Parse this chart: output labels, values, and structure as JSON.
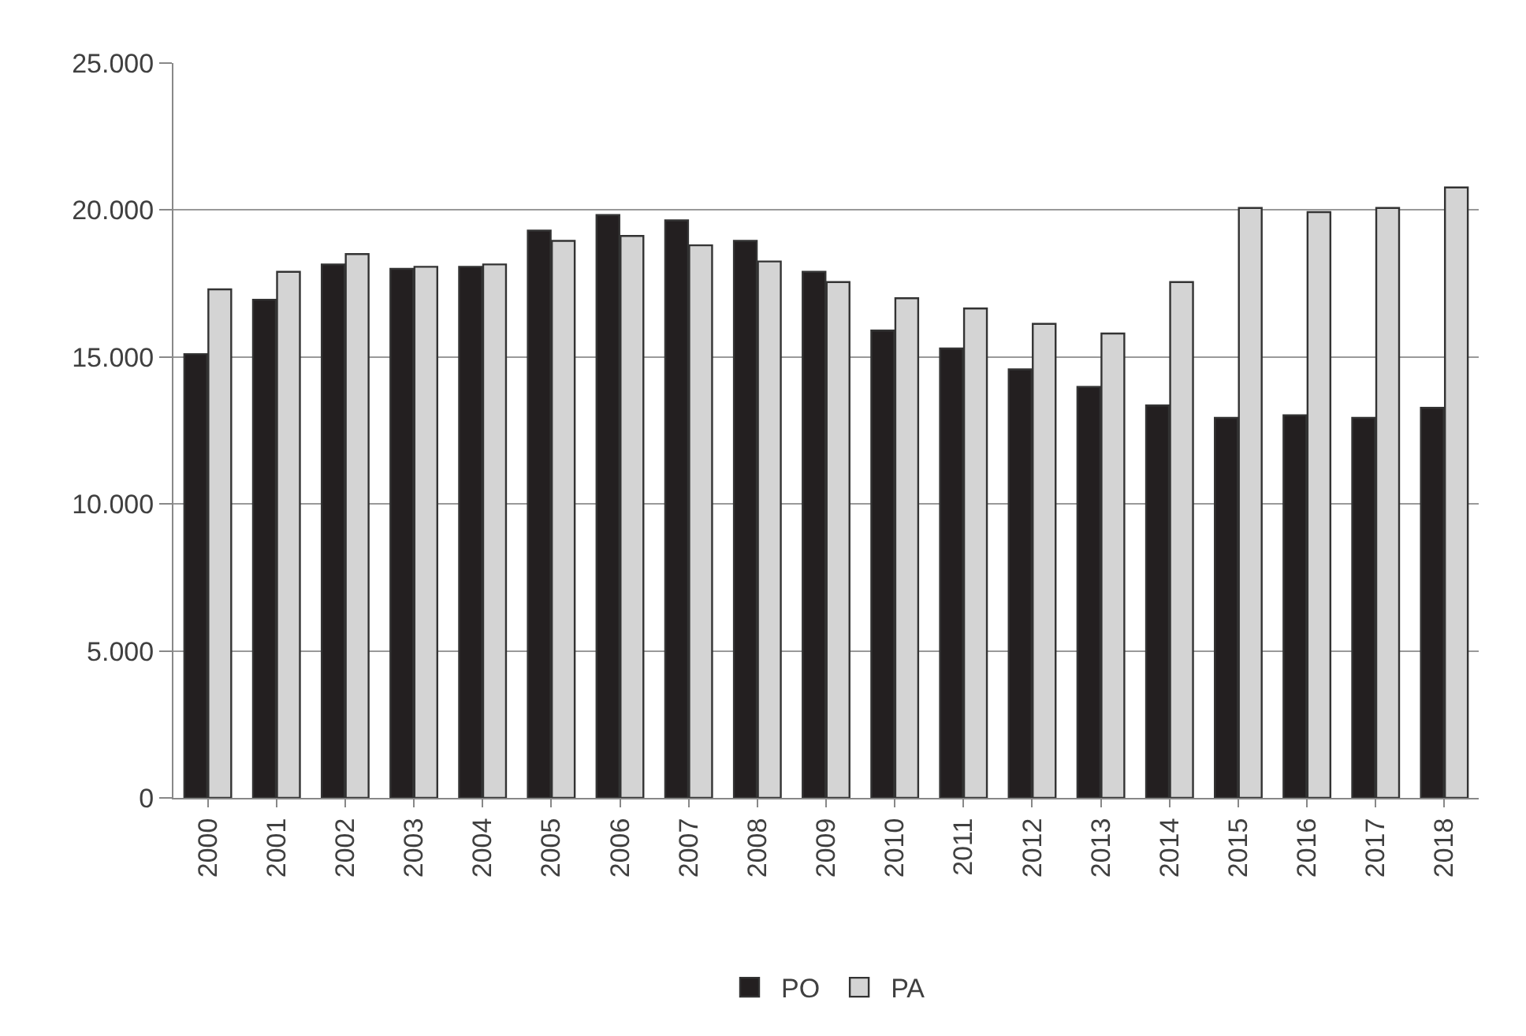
{
  "chart_data": {
    "type": "bar",
    "categories": [
      "2000",
      "2001",
      "2002",
      "2003",
      "2004",
      "2005",
      "2006",
      "2007",
      "2008",
      "2009",
      "2010",
      "2011",
      "2012",
      "2013",
      "2014",
      "2015",
      "2016",
      "2017",
      "2018"
    ],
    "series": [
      {
        "name": "PO",
        "color": "#231f20",
        "values": [
          15100,
          16950,
          18150,
          18000,
          18070,
          19300,
          19830,
          19650,
          18950,
          17900,
          15900,
          15290,
          14580,
          13980,
          13350,
          12930,
          13020,
          12930,
          13270
        ]
      },
      {
        "name": "PA",
        "color": "#d4d4d4",
        "values": [
          17300,
          17900,
          18500,
          18070,
          18150,
          18950,
          19120,
          18800,
          18250,
          17550,
          17000,
          16650,
          16130,
          15800,
          17550,
          20070,
          19930,
          20070,
          20770
        ]
      }
    ],
    "ylim": [
      0,
      25000
    ],
    "yticks": [
      0,
      {
        "value": 5000,
        "label": "5.000"
      },
      {
        "value": 10000,
        "label": "10.000"
      },
      {
        "value": 15000,
        "label": "15.000"
      },
      {
        "value": 20000,
        "label": "20.000"
      },
      {
        "value": 25000,
        "label": "25.000"
      }
    ],
    "grid": "y",
    "legend": "bottom"
  }
}
